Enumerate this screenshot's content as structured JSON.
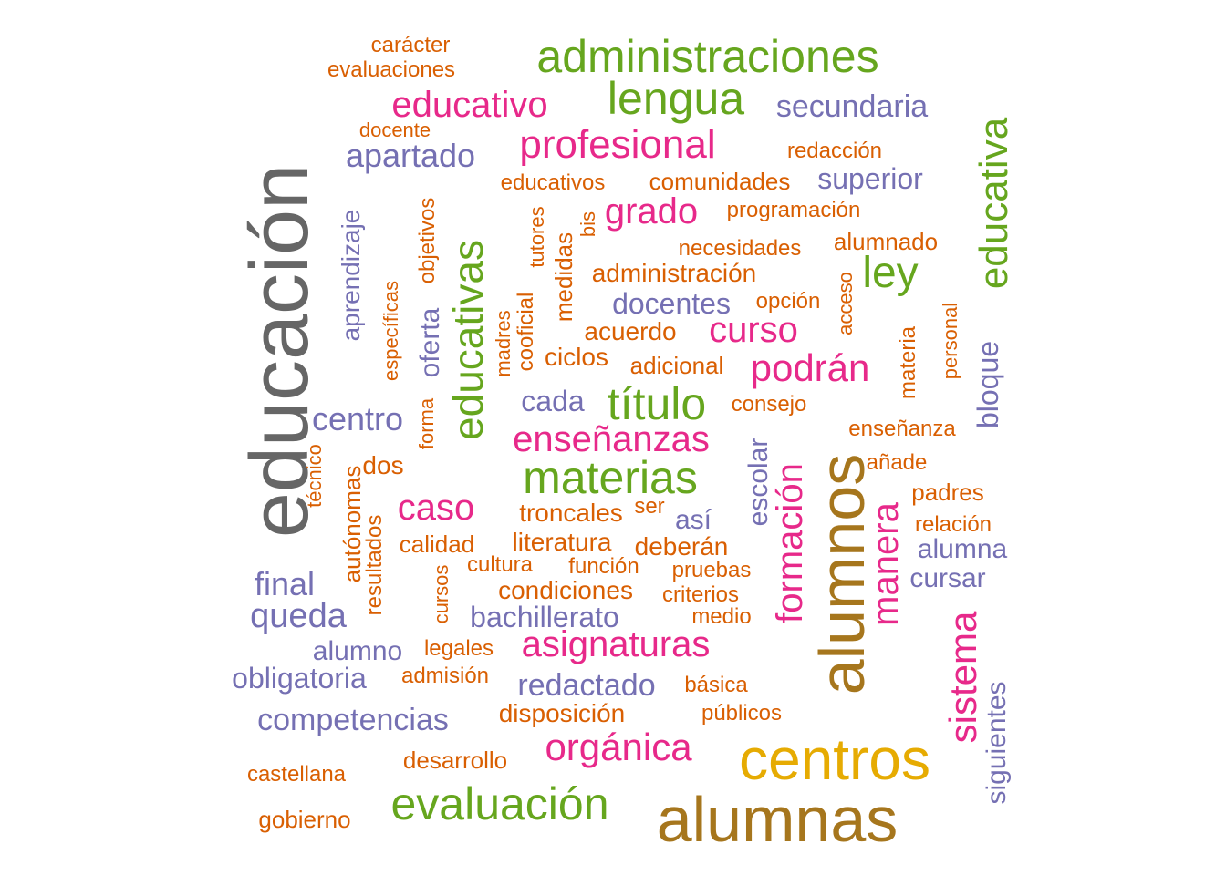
{
  "palette": {
    "gray": "#666666",
    "brown": "#a6761d",
    "gold": "#e6ab02",
    "green": "#66a61e",
    "pink": "#e7298a",
    "purple": "#7570b3",
    "orange": "#d95f02"
  },
  "words": [
    {
      "text": "educación",
      "color": "gray"
    },
    {
      "text": "alumnos",
      "color": "brown"
    },
    {
      "text": "alumnas",
      "color": "brown"
    },
    {
      "text": "centros",
      "color": "gold"
    },
    {
      "text": "administraciones",
      "color": "green"
    },
    {
      "text": "lengua",
      "color": "green"
    },
    {
      "text": "educativas",
      "color": "green"
    },
    {
      "text": "educativa",
      "color": "green"
    },
    {
      "text": "materias",
      "color": "green"
    },
    {
      "text": "título",
      "color": "green"
    },
    {
      "text": "evaluación",
      "color": "green"
    },
    {
      "text": "ley",
      "color": "green"
    },
    {
      "text": "profesional",
      "color": "pink"
    },
    {
      "text": "educativo",
      "color": "pink"
    },
    {
      "text": "grado",
      "color": "pink"
    },
    {
      "text": "podrán",
      "color": "pink"
    },
    {
      "text": "curso",
      "color": "pink"
    },
    {
      "text": "enseñanzas",
      "color": "pink"
    },
    {
      "text": "caso",
      "color": "pink"
    },
    {
      "text": "asignaturas",
      "color": "pink"
    },
    {
      "text": "orgánica",
      "color": "pink"
    },
    {
      "text": "formación",
      "color": "pink"
    },
    {
      "text": "manera",
      "color": "pink"
    },
    {
      "text": "sistema",
      "color": "pink"
    },
    {
      "text": "secundaria",
      "color": "purple"
    },
    {
      "text": "apartado",
      "color": "purple"
    },
    {
      "text": "superior",
      "color": "purple"
    },
    {
      "text": "docentes",
      "color": "purple"
    },
    {
      "text": "cada",
      "color": "purple"
    },
    {
      "text": "centro",
      "color": "purple"
    },
    {
      "text": "así",
      "color": "purple"
    },
    {
      "text": "final",
      "color": "purple"
    },
    {
      "text": "queda",
      "color": "purple"
    },
    {
      "text": "bachillerato",
      "color": "purple"
    },
    {
      "text": "alumno",
      "color": "purple"
    },
    {
      "text": "obligatoria",
      "color": "purple"
    },
    {
      "text": "redactado",
      "color": "purple"
    },
    {
      "text": "competencias",
      "color": "purple"
    },
    {
      "text": "alumna",
      "color": "purple"
    },
    {
      "text": "cursar",
      "color": "purple"
    },
    {
      "text": "aprendizaje",
      "color": "purple"
    },
    {
      "text": "oferta",
      "color": "purple"
    },
    {
      "text": "escolar",
      "color": "purple"
    },
    {
      "text": "bloque",
      "color": "purple"
    },
    {
      "text": "siguientes",
      "color": "purple"
    },
    {
      "text": "carácter",
      "color": "orange"
    },
    {
      "text": "evaluaciones",
      "color": "orange"
    },
    {
      "text": "docente",
      "color": "orange"
    },
    {
      "text": "redacción",
      "color": "orange"
    },
    {
      "text": "educativos",
      "color": "orange"
    },
    {
      "text": "comunidades",
      "color": "orange"
    },
    {
      "text": "programación",
      "color": "orange"
    },
    {
      "text": "necesidades",
      "color": "orange"
    },
    {
      "text": "alumnado",
      "color": "orange"
    },
    {
      "text": "administración",
      "color": "orange"
    },
    {
      "text": "opción",
      "color": "orange"
    },
    {
      "text": "acuerdo",
      "color": "orange"
    },
    {
      "text": "ciclos",
      "color": "orange"
    },
    {
      "text": "adicional",
      "color": "orange"
    },
    {
      "text": "consejo",
      "color": "orange"
    },
    {
      "text": "enseñanza",
      "color": "orange"
    },
    {
      "text": "añade",
      "color": "orange"
    },
    {
      "text": "dos",
      "color": "orange"
    },
    {
      "text": "padres",
      "color": "orange"
    },
    {
      "text": "troncales",
      "color": "orange"
    },
    {
      "text": "ser",
      "color": "orange"
    },
    {
      "text": "relación",
      "color": "orange"
    },
    {
      "text": "calidad",
      "color": "orange"
    },
    {
      "text": "literatura",
      "color": "orange"
    },
    {
      "text": "deberán",
      "color": "orange"
    },
    {
      "text": "cultura",
      "color": "orange"
    },
    {
      "text": "función",
      "color": "orange"
    },
    {
      "text": "pruebas",
      "color": "orange"
    },
    {
      "text": "condiciones",
      "color": "orange"
    },
    {
      "text": "criterios",
      "color": "orange"
    },
    {
      "text": "medio",
      "color": "orange"
    },
    {
      "text": "legales",
      "color": "orange"
    },
    {
      "text": "admisión",
      "color": "orange"
    },
    {
      "text": "básica",
      "color": "orange"
    },
    {
      "text": "disposición",
      "color": "orange"
    },
    {
      "text": "públicos",
      "color": "orange"
    },
    {
      "text": "desarrollo",
      "color": "orange"
    },
    {
      "text": "castellana",
      "color": "orange"
    },
    {
      "text": "gobierno",
      "color": "orange"
    },
    {
      "text": "específicas",
      "color": "orange"
    },
    {
      "text": "objetivos",
      "color": "orange"
    },
    {
      "text": "forma",
      "color": "orange"
    },
    {
      "text": "técnico",
      "color": "orange"
    },
    {
      "text": "autónomas",
      "color": "orange"
    },
    {
      "text": "resultados",
      "color": "orange"
    },
    {
      "text": "cursos",
      "color": "orange"
    },
    {
      "text": "madres",
      "color": "orange"
    },
    {
      "text": "cooficial",
      "color": "orange"
    },
    {
      "text": "tutores",
      "color": "orange"
    },
    {
      "text": "medidas",
      "color": "orange"
    },
    {
      "text": "bis",
      "color": "orange"
    },
    {
      "text": "acceso",
      "color": "orange"
    },
    {
      "text": "materia",
      "color": "orange"
    },
    {
      "text": "personal",
      "color": "orange"
    }
  ]
}
